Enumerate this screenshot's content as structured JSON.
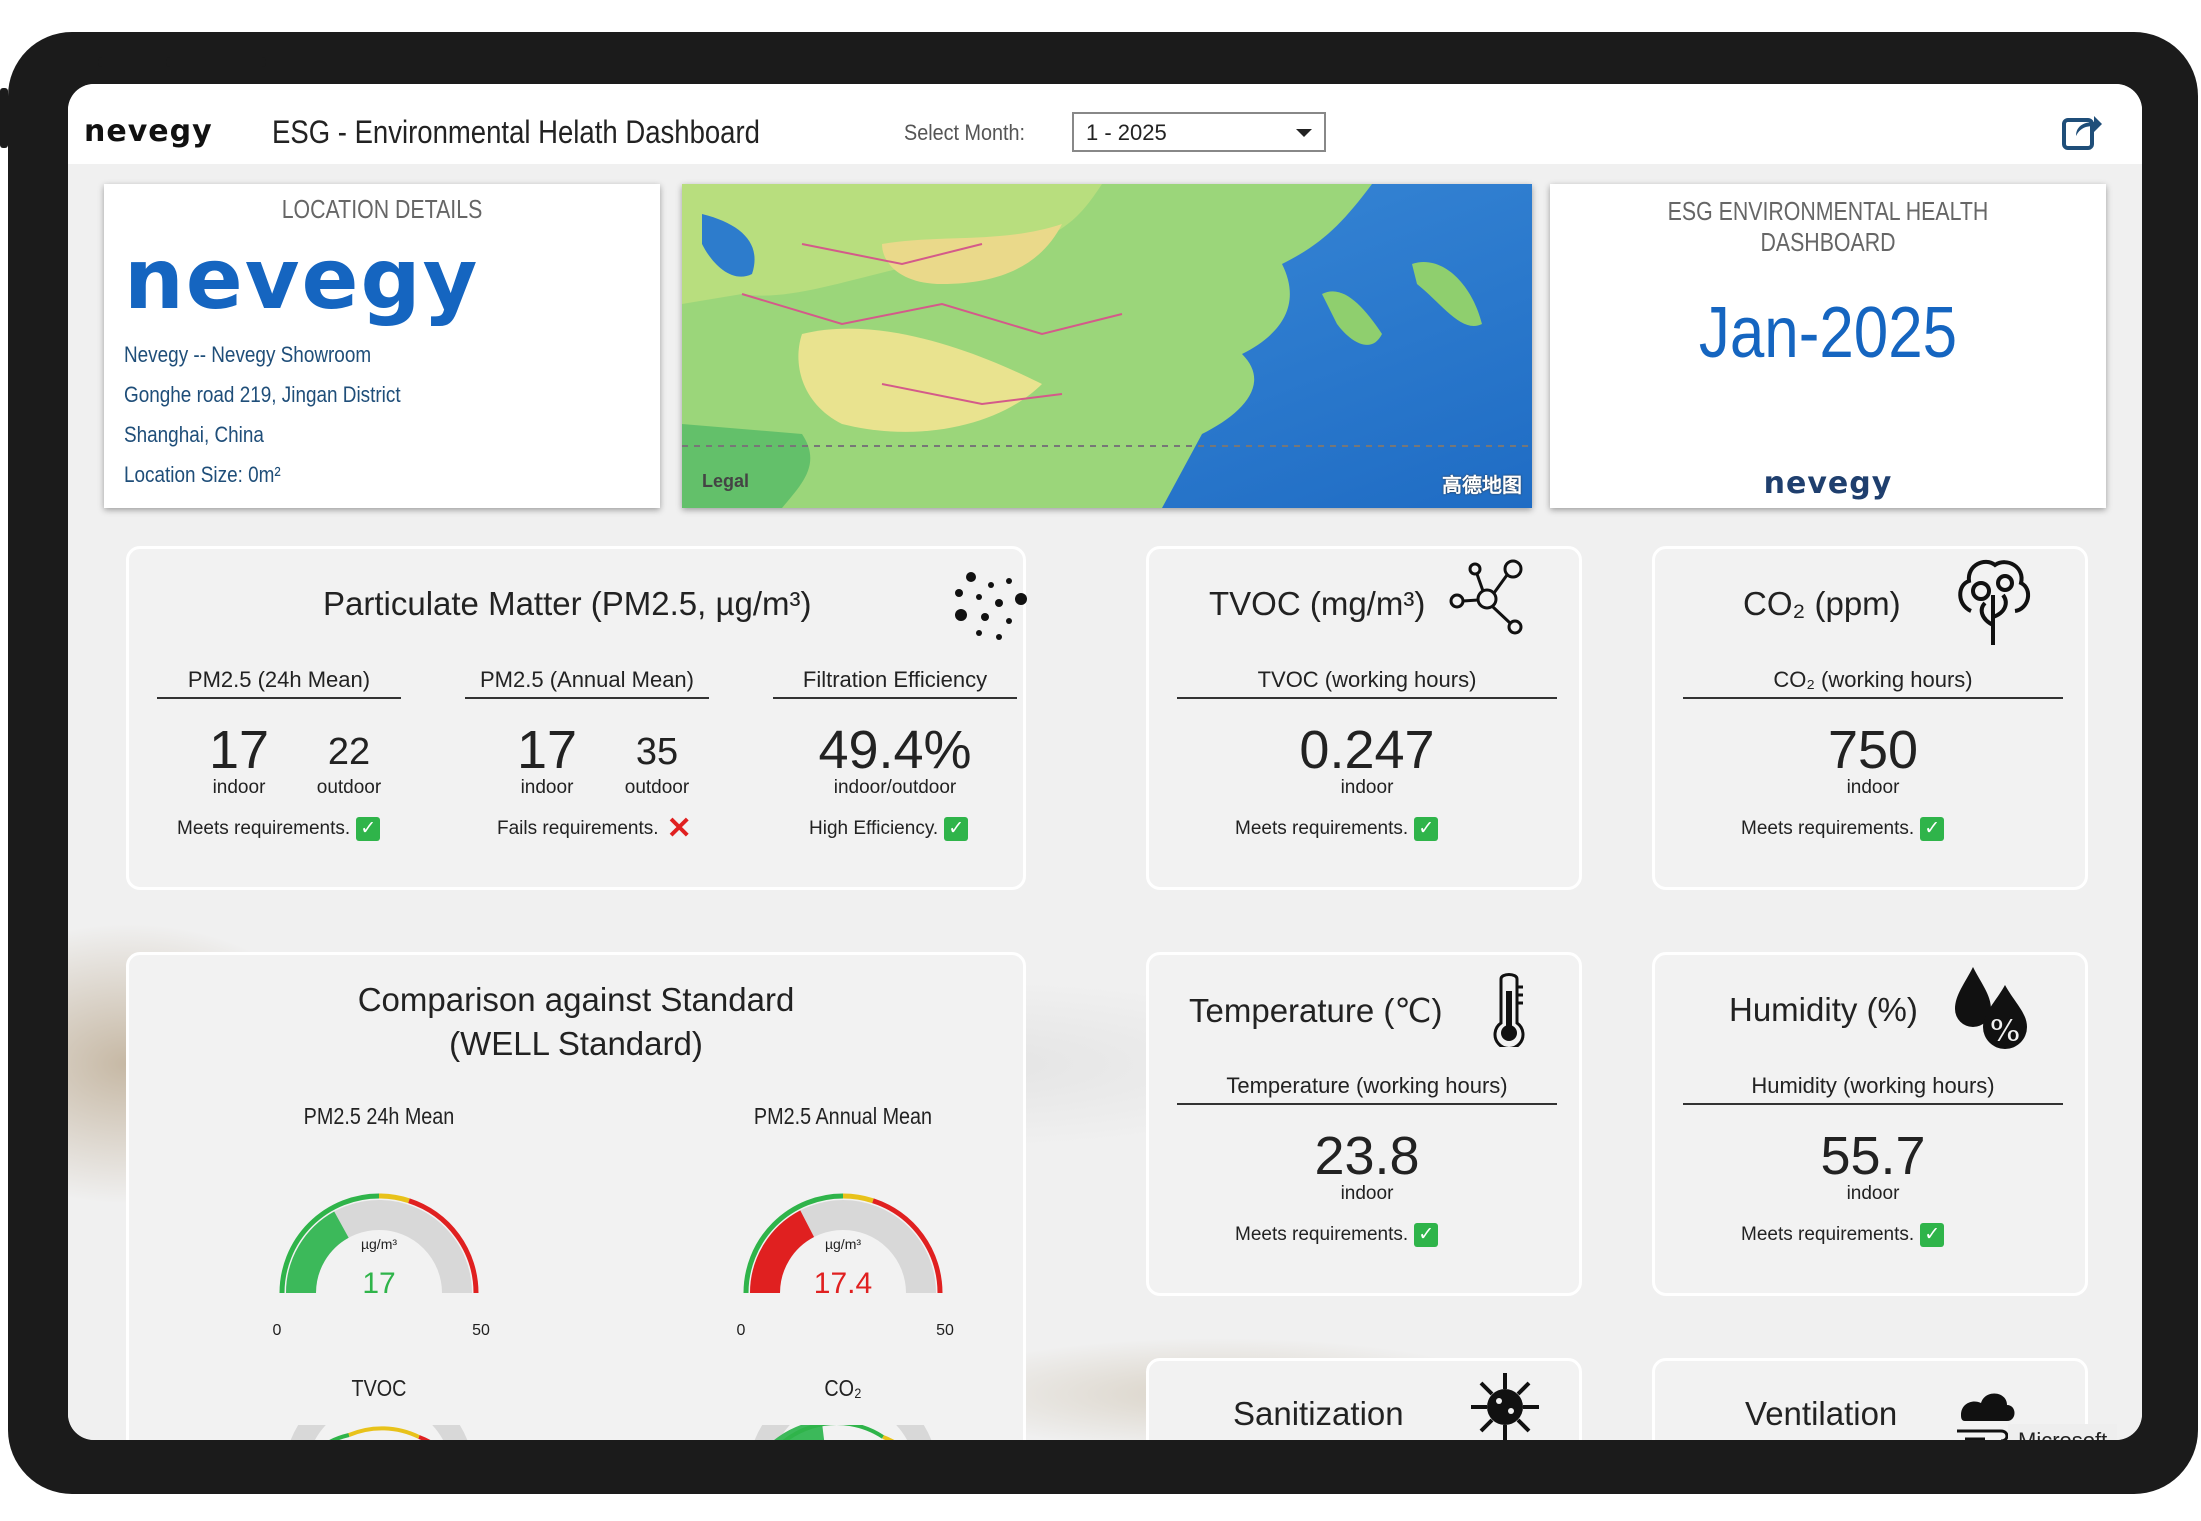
{
  "header": {
    "logo": "nevegy",
    "title": "ESG - Environmental Helath Dashboard",
    "month_label": "Select Month:",
    "month_value": "1 - 2025"
  },
  "location": {
    "title": "LOCATION DETAILS",
    "logo": "nevegy",
    "lines": [
      "Nevegy -- Nevegy Showroom",
      "Gonghe road 219, Jingan District",
      "Shanghai, China",
      "Location Size: 0m²"
    ]
  },
  "map": {
    "legal": "Legal",
    "brand": "高德地图"
  },
  "esg": {
    "title": "ESG ENVIRONMENTAL HEALTH DASHBOARD",
    "date": "Jan-2025",
    "logo": "nevegy"
  },
  "pm": {
    "title": "Particulate Matter (PM2.5, µg/m³)",
    "cols": [
      {
        "head": "PM2.5 (24h Mean)",
        "indoor": "17",
        "outdoor": "22",
        "indoor_label": "indoor",
        "outdoor_label": "outdoor",
        "status": "Meets requirements.",
        "status_ok": true
      },
      {
        "head": "PM2.5 (Annual Mean)",
        "indoor": "17",
        "outdoor": "35",
        "indoor_label": "indoor",
        "outdoor_label": "outdoor",
        "status": "Fails requirements.",
        "status_ok": false
      },
      {
        "head": "Filtration Efficiency",
        "value": "49.4%",
        "label": "indoor/outdoor",
        "status": "High Efficiency.",
        "status_ok": true
      }
    ]
  },
  "tvoc": {
    "title": "TVOC (mg/m³)",
    "head": "TVOC (working hours)",
    "value": "0.247",
    "label": "indoor",
    "status": "Meets requirements."
  },
  "co2": {
    "title": "CO₂ (ppm)",
    "head": "CO₂ (working hours)",
    "value": "750",
    "label": "indoor",
    "status": "Meets requirements."
  },
  "temperature": {
    "title": "Temperature (℃)",
    "head": "Temperature (working hours)",
    "value": "23.8",
    "label": "indoor",
    "status": "Meets requirements."
  },
  "humidity": {
    "title": "Humidity (%)",
    "head": "Humidity (working hours)",
    "value": "55.7",
    "label": "indoor",
    "status": "Meets requirements."
  },
  "sanitization": {
    "title": "Sanitization"
  },
  "ventilation": {
    "title": "Ventilation"
  },
  "comparison": {
    "title_line1": "Comparison against Standard",
    "title_line2": "(WELL Standard)",
    "gauges": [
      {
        "title": "PM2.5 24h Mean",
        "unit": "µg/m³",
        "value": 17,
        "display": "17",
        "min": "0",
        "max": "50",
        "value_color": "#2fb44a",
        "fill_color": "#3cb95a"
      },
      {
        "title": "PM2.5 Annual Mean",
        "unit": "µg/m³",
        "value": 17.4,
        "display": "17.4",
        "min": "0",
        "max": "50",
        "value_color": "#e02020",
        "fill_color": "#e02020"
      }
    ],
    "lower_titles": [
      "TVOC",
      "CO₂"
    ]
  },
  "watermark": "Microsoft",
  "colors": {
    "accent_blue": "#1565c0",
    "ok_green": "#2fb44a",
    "fail_red": "#e02020"
  }
}
